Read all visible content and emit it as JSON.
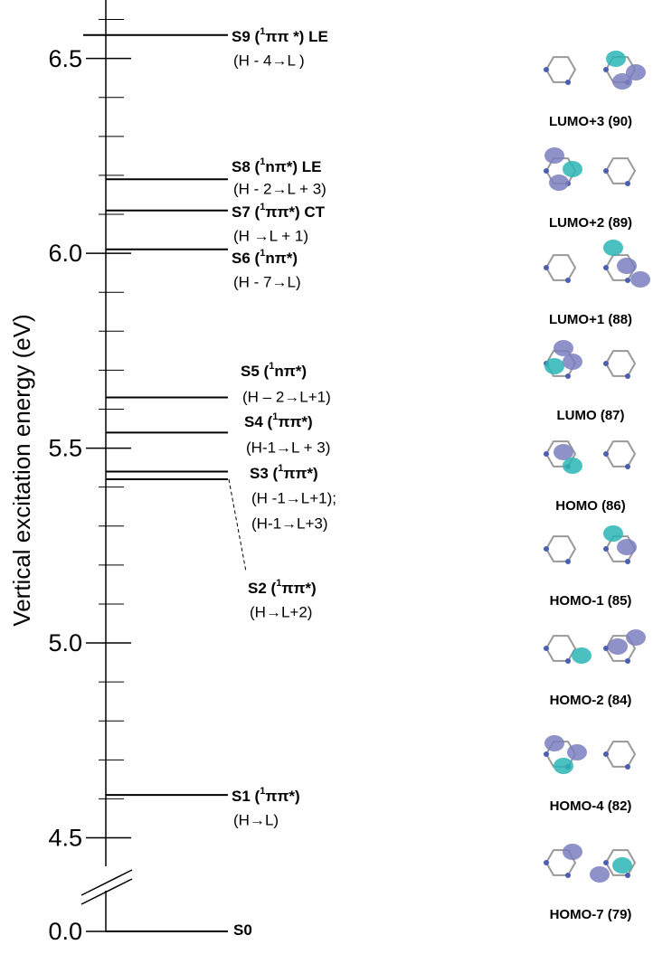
{
  "chart_data": {
    "type": "energy-levels",
    "y_label": "Vertical excitation energy (eV)",
    "ylim": [
      4.42,
      6.65
    ],
    "axis_break": true,
    "yticks": [
      {
        "value": 0,
        "label": "0.0"
      },
      4.5,
      {
        "value": 5,
        "label": "5.0"
      },
      5.5,
      {
        "value": 6,
        "label": "6.0"
      },
      6.5
    ],
    "minor_yticks": [
      4.6,
      4.7,
      4.8,
      4.9,
      5.1,
      5.2,
      5.3,
      5.4,
      5.6,
      5.7,
      5.8,
      5.9,
      6.1,
      6.2,
      6.3,
      6.4,
      6.6
    ],
    "levels": [
      {
        "label_parts": [
          "S9 (",
          "1",
          "ππ *) LE"
        ],
        "transition": [
          "(H - 4→L )"
        ],
        "value": 6.56
      },
      {
        "label_parts": [
          "S8 (",
          "1",
          "nπ*) LE"
        ],
        "transition": [
          "(H - 2→L + 3)"
        ],
        "value": 6.19
      },
      {
        "label_parts": [
          "S7 (",
          "1",
          "ππ*) CT"
        ],
        "transition": [
          "(H →L + 1)"
        ],
        "value": 6.11
      },
      {
        "label_parts": [
          "S6 (",
          "1",
          "nπ*)"
        ],
        "transition": [
          "(H - 7→L)"
        ],
        "value": 6.01
      },
      {
        "label_parts": [
          "S5 (",
          "1",
          "nπ*)"
        ],
        "transition": [
          "(H – 2→L+1)"
        ],
        "value": 5.63
      },
      {
        "label_parts": [
          "S4 (",
          "1",
          "ππ*)"
        ],
        "transition": [
          "(H-1→L + 3)"
        ],
        "value": 5.54
      },
      {
        "label_parts": [
          "S3 (",
          "1",
          "ππ*)"
        ],
        "transition": [
          "(H -1→L+1);",
          "(H-1→L+3)"
        ],
        "value": 5.44
      },
      {
        "label_parts": [
          "S2 (",
          "1",
          "ππ*)"
        ],
        "transition": [
          "(H→L+2)"
        ],
        "value": 5.42
      },
      {
        "label_parts": [
          "S1 (",
          "1",
          "ππ*)"
        ],
        "transition": [
          "(H→L)"
        ],
        "value": 4.61
      },
      {
        "label_parts": [
          "S0"
        ],
        "transition": [],
        "value": 0
      }
    ],
    "orbitals": [
      "LUMO+3 (90)",
      "LUMO+2 (89)",
      "LUMO+1 (88)",
      "LUMO (87)",
      "HOMO (86)",
      "HOMO-1 (85)",
      "HOMO-2 (84)",
      "HOMO-4 (82)",
      "HOMO-7 (79)"
    ],
    "color": "#000000"
  }
}
